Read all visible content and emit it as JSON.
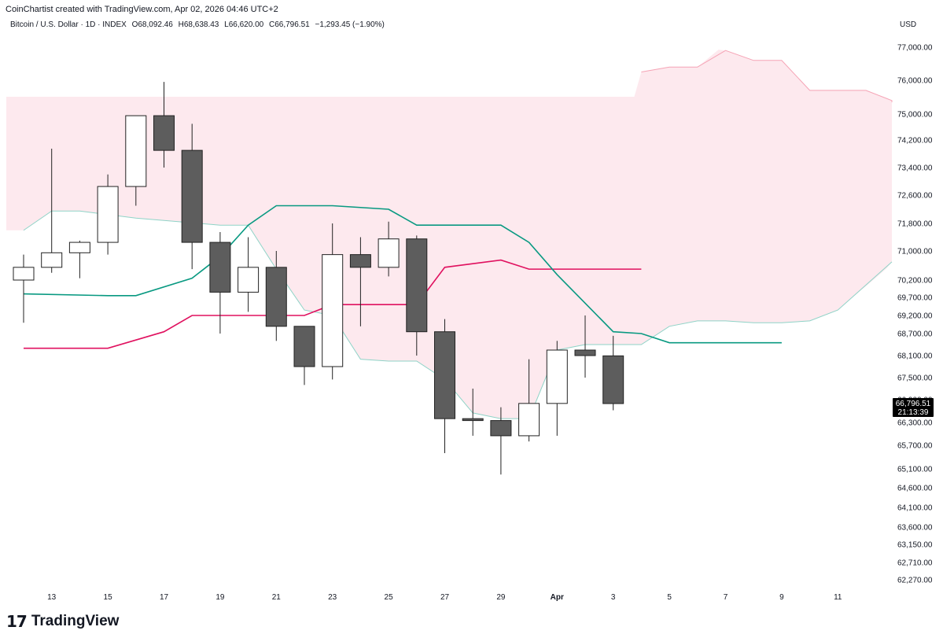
{
  "credit": "CoinChartist created with TradingView.com, Apr 02, 2026 04:46 UTC+2",
  "header": {
    "symbol": "Bitcoin / U.S. Dollar · 1D · INDEX",
    "open": "O68,092.46",
    "high": "H68,638.43",
    "low": "L66,620.00",
    "close": "C66,796.51",
    "change": "−1,293.45 (−1.90%)"
  },
  "currency": "USD",
  "brand": {
    "logo": "17",
    "name": "TradingView"
  },
  "price_tag": {
    "value": "66,796.51",
    "countdown": "21:13:39"
  },
  "colors": {
    "up_body": "#ffffff",
    "down_body": "#5d5d5d",
    "wick": "#222222",
    "cloud": "#fde9ee",
    "tenkan": "#e0115f",
    "kijun": "#089981",
    "span_b": "#f5a3b5",
    "span_a": "#8fd3c7"
  },
  "chart_data": {
    "type": "candlestick",
    "title": "Bitcoin / U.S. Dollar · 1D · INDEX",
    "ylim": [
      62000,
      77800
    ],
    "y_ticks": [
      "77,000.00",
      "76,000.00",
      "75,000.00",
      "74,200.00",
      "73,400.00",
      "72,600.00",
      "71,800.00",
      "71,000.00",
      "70,200.00",
      "69,700.00",
      "69,200.00",
      "68,700.00",
      "68,100.00",
      "67,500.00",
      "66,900.00",
      "66,300.00",
      "65,700.00",
      "65,100.00",
      "64,600.00",
      "64,100.00",
      "63,600.00",
      "63,150.00",
      "62,710.00",
      "62,270.00"
    ],
    "x_ticks": [
      {
        "label": "13",
        "idx": 1
      },
      {
        "label": "15",
        "idx": 3
      },
      {
        "label": "17",
        "idx": 5
      },
      {
        "label": "19",
        "idx": 7
      },
      {
        "label": "21",
        "idx": 9
      },
      {
        "label": "23",
        "idx": 11
      },
      {
        "label": "25",
        "idx": 13
      },
      {
        "label": "27",
        "idx": 15
      },
      {
        "label": "29",
        "idx": 17
      },
      {
        "label": "Apr",
        "idx": 19
      },
      {
        "label": "3",
        "idx": 21
      },
      {
        "label": "5",
        "idx": 23
      },
      {
        "label": "7",
        "idx": 25
      },
      {
        "label": "9",
        "idx": 27
      },
      {
        "label": "11",
        "idx": 29
      }
    ],
    "candles": [
      {
        "date": "Mar 12",
        "o": 70200,
        "h": 70900,
        "l": 69000,
        "c": 70550
      },
      {
        "date": "Mar 13",
        "o": 70550,
        "h": 73950,
        "l": 70400,
        "c": 70950
      },
      {
        "date": "Mar 14",
        "o": 70950,
        "h": 71300,
        "l": 70250,
        "c": 71250
      },
      {
        "date": "Mar 15",
        "o": 71250,
        "h": 73200,
        "l": 70900,
        "c": 72850
      },
      {
        "date": "Mar 16",
        "o": 72850,
        "h": 74900,
        "l": 72300,
        "c": 74950
      },
      {
        "date": "Mar 17",
        "o": 74950,
        "h": 75950,
        "l": 73400,
        "c": 73900
      },
      {
        "date": "Mar 18",
        "o": 73900,
        "h": 74700,
        "l": 70500,
        "c": 71250
      },
      {
        "date": "Mar 19",
        "o": 71250,
        "h": 71550,
        "l": 68700,
        "c": 69850
      },
      {
        "date": "Mar 20",
        "o": 69850,
        "h": 71400,
        "l": 69300,
        "c": 70550
      },
      {
        "date": "Mar 21",
        "o": 70550,
        "h": 71000,
        "l": 68500,
        "c": 68900
      },
      {
        "date": "Mar 22",
        "o": 68900,
        "h": 68900,
        "l": 67300,
        "c": 67800
      },
      {
        "date": "Mar 23",
        "o": 67800,
        "h": 71800,
        "l": 67450,
        "c": 70900
      },
      {
        "date": "Mar 24",
        "o": 70900,
        "h": 71400,
        "l": 68900,
        "c": 70550
      },
      {
        "date": "Mar 25",
        "o": 70550,
        "h": 71850,
        "l": 70300,
        "c": 71350
      },
      {
        "date": "Mar 26",
        "o": 71350,
        "h": 71450,
        "l": 68100,
        "c": 68750
      },
      {
        "date": "Mar 27",
        "o": 68750,
        "h": 69100,
        "l": 65500,
        "c": 66400
      },
      {
        "date": "Mar 28",
        "o": 66400,
        "h": 67200,
        "l": 65950,
        "c": 66350
      },
      {
        "date": "Mar 29",
        "o": 66350,
        "h": 66700,
        "l": 64950,
        "c": 65950
      },
      {
        "date": "Mar 30",
        "o": 65950,
        "h": 68000,
        "l": 65800,
        "c": 66800
      },
      {
        "date": "Mar 31",
        "o": 66800,
        "h": 68500,
        "l": 65950,
        "c": 68250
      },
      {
        "date": "Apr 01",
        "o": 68250,
        "h": 69200,
        "l": 67500,
        "c": 68100
      },
      {
        "date": "Apr 02",
        "o": 68092.46,
        "h": 68638.43,
        "l": 66620,
        "c": 66796.51
      }
    ],
    "ichimoku": {
      "tenkan": [
        [
          0,
          68300
        ],
        [
          3,
          68300
        ],
        [
          5,
          68750
        ],
        [
          6,
          69200
        ],
        [
          10,
          69200
        ],
        [
          11,
          69500
        ],
        [
          14,
          69500
        ],
        [
          15,
          70550
        ],
        [
          17,
          70750
        ],
        [
          18,
          70500
        ],
        [
          22,
          70500
        ]
      ],
      "kijun": [
        [
          0,
          69800
        ],
        [
          3,
          69750
        ],
        [
          4,
          69750
        ],
        [
          6,
          70250
        ],
        [
          7,
          70850
        ],
        [
          8,
          71750
        ],
        [
          9,
          72300
        ],
        [
          11,
          72300
        ],
        [
          13,
          72200
        ],
        [
          14,
          71750
        ],
        [
          17,
          71750
        ],
        [
          18,
          71250
        ],
        [
          19,
          70350
        ],
        [
          21,
          68750
        ],
        [
          22,
          68700
        ],
        [
          23,
          68450
        ],
        [
          26,
          68450
        ],
        [
          27,
          68450
        ]
      ],
      "span_a": [
        [
          0,
          71600
        ],
        [
          1,
          72150
        ],
        [
          2,
          72150
        ],
        [
          4,
          71950
        ],
        [
          7,
          71750
        ],
        [
          8,
          71750
        ],
        [
          9,
          70500
        ],
        [
          10,
          69350
        ],
        [
          11,
          69200
        ],
        [
          12,
          68000
        ],
        [
          13,
          67950
        ],
        [
          14,
          67950
        ],
        [
          15,
          67450
        ],
        [
          16,
          66550
        ],
        [
          17,
          66400
        ],
        [
          18,
          66400
        ],
        [
          19,
          68250
        ],
        [
          20,
          68400
        ],
        [
          21,
          68400
        ],
        [
          22,
          68400
        ],
        [
          23,
          68900
        ],
        [
          24,
          69050
        ],
        [
          25,
          69050
        ],
        [
          26,
          69000
        ],
        [
          27,
          69000
        ],
        [
          28,
          69050
        ],
        [
          29,
          69350
        ],
        [
          31,
          70700
        ]
      ],
      "span_b": [
        [
          22,
          77750
        ],
        [
          23,
          77600
        ],
        [
          24,
          77600
        ],
        [
          25,
          76900
        ],
        [
          26,
          76600
        ],
        [
          27,
          76600
        ],
        [
          28,
          75700
        ],
        [
          29,
          75700
        ],
        [
          30,
          75700
        ],
        [
          31,
          75400
        ],
        [
          33,
          75350
        ]
      ]
    }
  }
}
